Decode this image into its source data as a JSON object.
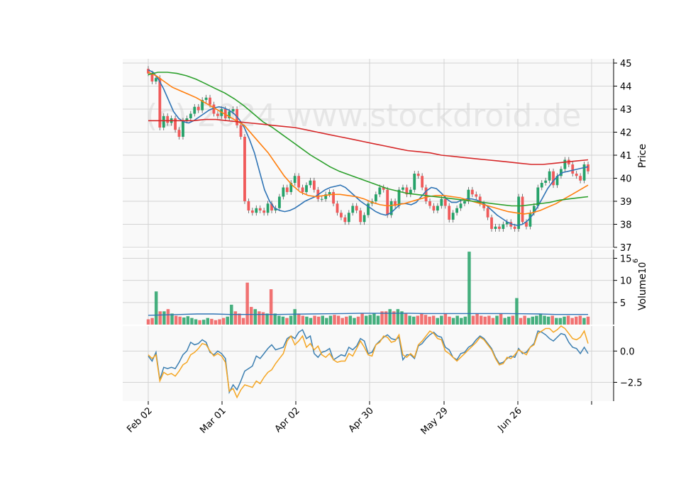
{
  "watermark": "(c) 2024 www.stockdroid.de",
  "colors": {
    "up": "#26a269",
    "down": "#f05a5a",
    "ma_blue": "#2f74b5",
    "ma_orange": "#ff7f0e",
    "ma_green": "#2ca02c",
    "ma_red": "#d62728",
    "vol_line": "#2f74b5",
    "osc_blue": "#3c7fb1",
    "osc_orange": "#f5a623",
    "panel_bg": "#f9f9f9",
    "grid": "#d3d3d3"
  },
  "chart_data": [
    {
      "type": "candlestick",
      "panel": "price",
      "ylabel": "Price",
      "ylim": [
        37,
        45
      ],
      "yticks": [
        37,
        38,
        39,
        40,
        41,
        42,
        43,
        44,
        45
      ],
      "xticks": [
        "Feb 02",
        "Mar 01",
        "Apr 02",
        "Apr 30",
        "May 29",
        "Jun 26"
      ],
      "close": [
        44.55,
        44.2,
        44.35,
        42.2,
        42.7,
        42.4,
        42.6,
        42.1,
        41.8,
        42.5,
        42.6,
        42.8,
        43.1,
        42.95,
        43.4,
        43.5,
        43.2,
        42.8,
        42.7,
        43.0,
        42.6,
        42.9,
        43.0,
        42.3,
        41.8,
        39.0,
        38.6,
        38.5,
        38.7,
        38.6,
        38.5,
        38.9,
        38.6,
        38.7,
        39.2,
        39.6,
        39.4,
        39.8,
        40.1,
        39.6,
        39.4,
        39.7,
        39.9,
        39.5,
        39.1,
        39.1,
        39.3,
        39.4,
        38.9,
        38.5,
        38.3,
        38.1,
        38.5,
        38.8,
        38.6,
        38.1,
        38.4,
        38.9,
        39.0,
        39.3,
        39.6,
        39.5,
        38.4,
        39.0,
        38.8,
        39.5,
        39.6,
        39.3,
        39.5,
        40.2,
        40.1,
        39.6,
        39.0,
        38.8,
        38.6,
        38.8,
        39.1,
        38.8,
        38.2,
        38.5,
        38.7,
        38.9,
        39.0,
        39.5,
        39.3,
        39.2,
        38.9,
        38.7,
        38.3,
        37.8,
        37.9,
        37.8,
        38.0,
        38.1,
        37.9,
        37.8,
        39.2,
        38.1,
        37.9,
        38.5,
        38.8,
        39.6,
        39.8,
        39.9,
        40.3,
        39.7,
        40.1,
        40.4,
        40.8,
        40.6,
        40.2,
        40.1,
        39.9,
        40.6,
        40.3
      ],
      "series": [
        {
          "name": "",
          "values": [
            44.7,
            44.6,
            44.3,
            43.9,
            43.4,
            42.9,
            42.6,
            42.45,
            42.4,
            42.5,
            42.65,
            42.8,
            42.95,
            43.05,
            43.1,
            43.05,
            42.95,
            42.8,
            42.55,
            42.2,
            41.7,
            41.1,
            40.3,
            39.5,
            39.0,
            38.7,
            38.6,
            38.55,
            38.6,
            38.7,
            38.85,
            39.0,
            39.1,
            39.2,
            39.35,
            39.5,
            39.6,
            39.65,
            39.7,
            39.6,
            39.4,
            39.2,
            39.0,
            38.85,
            38.7,
            38.55,
            38.45,
            38.4,
            38.5,
            38.7,
            38.9,
            38.9,
            38.85,
            38.95,
            39.2,
            39.45,
            39.6,
            39.55,
            39.35,
            39.1,
            38.95,
            38.95,
            39.05,
            39.1,
            39.1,
            39.05,
            38.95,
            38.8,
            38.6,
            38.4,
            38.25,
            38.1,
            38.0,
            37.95,
            38.0,
            38.15,
            38.4,
            38.75,
            39.15,
            39.55,
            39.85,
            40.1,
            40.25,
            40.3,
            40.35,
            40.4,
            40.45,
            40.5
          ]
        },
        {
          "name": "",
          "values": [
            44.6,
            44.45,
            44.2,
            43.95,
            43.8,
            43.65,
            43.5,
            43.3,
            43.1,
            42.9,
            42.7,
            42.5,
            42.3,
            41.9,
            41.5,
            41.1,
            40.6,
            40.1,
            39.7,
            39.4,
            39.25,
            39.2,
            39.25,
            39.3,
            39.3,
            39.25,
            39.2,
            39.1,
            38.95,
            38.85,
            38.8,
            38.85,
            38.9,
            39.0,
            39.1,
            39.2,
            39.25,
            39.25,
            39.2,
            39.15,
            39.05,
            38.95,
            38.85,
            38.75,
            38.65,
            38.55,
            38.5,
            38.45,
            38.5,
            38.6,
            38.75,
            38.9,
            39.1,
            39.3,
            39.5,
            39.7
          ]
        },
        {
          "name": "",
          "values": [
            44.5,
            44.6,
            44.6,
            44.55,
            44.45,
            44.3,
            44.1,
            43.9,
            43.7,
            43.45,
            43.15,
            42.8,
            42.45,
            42.2,
            41.9,
            41.6,
            41.3,
            41.0,
            40.75,
            40.5,
            40.3,
            40.15,
            40.0,
            39.85,
            39.7,
            39.55,
            39.45,
            39.35,
            39.3,
            39.25,
            39.2,
            39.15,
            39.1,
            39.05,
            39.0,
            38.95,
            38.9,
            38.85,
            38.8,
            38.8,
            38.85,
            38.9,
            38.95,
            39.05,
            39.1,
            39.15,
            39.2
          ]
        },
        {
          "name": "",
          "values": [
            42.5,
            42.5,
            42.5,
            42.5,
            42.5,
            42.55,
            42.55,
            42.5,
            42.45,
            42.4,
            42.35,
            42.3,
            42.25,
            42.2,
            42.1,
            42.0,
            41.9,
            41.8,
            41.7,
            41.6,
            41.5,
            41.4,
            41.3,
            41.2,
            41.15,
            41.1,
            41.0,
            40.95,
            40.9,
            40.85,
            40.8,
            40.75,
            40.7,
            40.65,
            40.6,
            40.6,
            40.65,
            40.7,
            40.75,
            40.8
          ]
        }
      ]
    },
    {
      "type": "bar",
      "panel": "volume",
      "ylabel": "Volume",
      "yscale_exponent": "10^6",
      "ylim": [
        0,
        17
      ],
      "yticks": [
        5,
        10,
        15
      ],
      "values": [
        1.2,
        1.5,
        7.5,
        3.0,
        3.0,
        3.5,
        2.5,
        2.0,
        1.8,
        1.6,
        1.9,
        1.5,
        1.2,
        1.0,
        1.1,
        1.5,
        1.3,
        1.0,
        1.2,
        1.5,
        1.8,
        4.5,
        3.0,
        2.5,
        1.5,
        9.5,
        4.0,
        3.5,
        3.0,
        2.8,
        2.5,
        8.0,
        2.5,
        2.0,
        1.8,
        1.5,
        2.0,
        3.5,
        2.5,
        2.0,
        1.8,
        1.5,
        2.0,
        1.8,
        2.0,
        1.5,
        2.0,
        2.2,
        2.0,
        1.5,
        1.8,
        2.0,
        1.5,
        1.8,
        2.5,
        2.0,
        2.2,
        2.5,
        2.0,
        3.0,
        3.0,
        3.5,
        3.0,
        3.5,
        3.0,
        2.5,
        2.0,
        1.8,
        2.0,
        2.5,
        2.2,
        1.8,
        2.0,
        1.5,
        2.0,
        2.5,
        1.8,
        1.5,
        2.0,
        1.5,
        1.8,
        16.5,
        2.0,
        2.5,
        2.0,
        1.8,
        2.0,
        1.5,
        2.0,
        2.5,
        1.5,
        1.8,
        2.0,
        6.0,
        1.5,
        2.0,
        1.5,
        1.8,
        2.0,
        2.5,
        2.0,
        1.8,
        2.0,
        1.5,
        1.5,
        1.8,
        2.0,
        1.5,
        1.8,
        2.0,
        1.5,
        1.8
      ],
      "series": [
        {
          "name": "",
          "values": [
            2.1,
            2.2,
            2.3,
            2.4,
            2.4,
            2.3,
            2.3,
            2.3,
            2.3,
            2.35,
            2.4,
            2.45,
            2.5,
            2.55,
            2.55,
            2.55,
            2.55,
            2.5,
            2.5,
            2.5,
            2.5,
            2.5,
            2.5,
            2.45,
            2.4,
            2.3,
            2.3,
            2.3
          ]
        }
      ]
    },
    {
      "type": "line",
      "panel": "oscillator",
      "ylim": [
        -4,
        2
      ],
      "yticks": [
        -2.5,
        0.0
      ],
      "ytick_labels": [
        "−2.5",
        "0.0"
      ],
      "series": [
        {
          "name": "",
          "values": [
            -0.4,
            -0.8,
            -0.1,
            -2.3,
            -1.3,
            -1.4,
            -1.3,
            -1.4,
            -0.9,
            -0.3,
            0.0,
            0.7,
            0.5,
            0.6,
            0.9,
            0.7,
            -0.1,
            -0.3,
            0.0,
            -0.2,
            -0.6,
            -3.3,
            -2.7,
            -3.1,
            -2.4,
            -1.6,
            -1.4,
            -1.2,
            -0.4,
            -0.6,
            -0.2,
            0.2,
            0.5,
            0.1,
            0.2,
            0.3,
            1.0,
            1.2,
            1.0,
            1.5,
            1.7,
            1.0,
            1.2,
            -0.2,
            -0.5,
            -0.1,
            0.0,
            0.2,
            -0.7,
            -0.5,
            -0.3,
            -0.4,
            0.3,
            0.1,
            0.4,
            1.0,
            0.8,
            -0.2,
            -0.1,
            0.5,
            0.8,
            1.1,
            1.3,
            1.0,
            0.9,
            1.1,
            -0.7,
            -0.3,
            -0.3,
            -0.6,
            0.4,
            0.6,
            1.0,
            1.3,
            1.5,
            1.2,
            1.1,
            0.3,
            0.1,
            -0.5,
            -0.7,
            -0.2,
            -0.1,
            0.3,
            0.5,
            0.9,
            1.2,
            1.0,
            0.6,
            0.2,
            -0.5,
            -1.0,
            -0.9,
            -0.6,
            -0.4,
            -0.5,
            0.2,
            -0.2,
            -0.1,
            0.3,
            0.6,
            1.6,
            1.5,
            1.3,
            1.0,
            0.8,
            1.1,
            1.4,
            1.3,
            0.7,
            0.3,
            0.2,
            -0.2,
            0.3,
            -0.2
          ]
        },
        {
          "name": "",
          "values": [
            -0.3,
            -0.6,
            -0.3,
            -2.4,
            -1.7,
            -1.9,
            -1.8,
            -2.0,
            -1.6,
            -1.1,
            -0.9,
            -0.3,
            -0.1,
            0.2,
            0.6,
            0.5,
            0.0,
            -0.4,
            -0.2,
            -0.4,
            -0.9,
            -3.2,
            -3.0,
            -3.7,
            -3.1,
            -2.7,
            -2.8,
            -2.9,
            -2.4,
            -2.6,
            -2.1,
            -1.7,
            -1.5,
            -1.0,
            -0.6,
            -0.2,
            0.8,
            1.2,
            0.5,
            0.8,
            1.2,
            0.3,
            0.6,
            0.1,
            0.4,
            -0.3,
            -0.5,
            -0.2,
            -0.7,
            -0.9,
            -0.8,
            -0.8,
            -0.2,
            -0.4,
            0.2,
            0.8,
            0.3,
            -0.3,
            -0.4,
            0.5,
            0.7,
            1.2,
            1.1,
            0.7,
            0.8,
            1.3,
            -0.3,
            -0.5,
            -0.2,
            -0.5,
            0.5,
            0.8,
            1.2,
            1.6,
            1.4,
            1.0,
            0.9,
            0.0,
            -0.2,
            -0.5,
            -0.8,
            -0.5,
            -0.2,
            0.1,
            0.4,
            0.7,
            1.1,
            0.9,
            0.5,
            0.1,
            -0.6,
            -1.1,
            -1.0,
            -0.5,
            -0.6,
            -0.3,
            0.1,
            -0.1,
            -0.3,
            0.3,
            0.5,
            1.4,
            1.6,
            1.8,
            1.8,
            1.5,
            1.7,
            2.0,
            1.8,
            1.4,
            1.0,
            0.9,
            1.1,
            1.6,
            0.6
          ]
        }
      ]
    }
  ]
}
